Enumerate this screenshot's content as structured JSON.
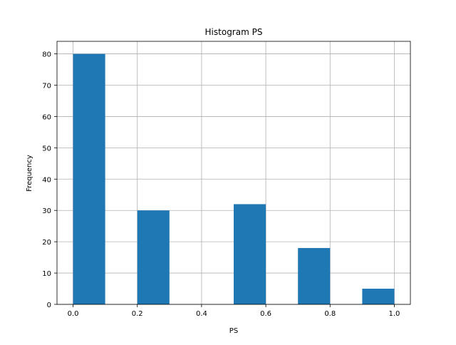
{
  "chart_data": {
    "type": "bar",
    "title": "Histogram PS",
    "xlabel": "PS",
    "ylabel": "Frequency",
    "bin_edges": [
      0.0,
      0.1,
      0.2,
      0.3,
      0.4,
      0.5,
      0.6,
      0.7,
      0.8,
      0.9,
      1.0
    ],
    "values": [
      80,
      0,
      30,
      0,
      0,
      32,
      0,
      18,
      0,
      5
    ],
    "xlim": [
      -0.05,
      1.05
    ],
    "ylim": [
      0,
      84
    ],
    "xticks": [
      0.0,
      0.2,
      0.4,
      0.6,
      0.8,
      1.0
    ],
    "xtick_labels": [
      "0.0",
      "0.2",
      "0.4",
      "0.6",
      "0.8",
      "1.0"
    ],
    "yticks": [
      0,
      10,
      20,
      30,
      40,
      50,
      60,
      70,
      80
    ],
    "ytick_labels": [
      "0",
      "10",
      "20",
      "30",
      "40",
      "50",
      "60",
      "70",
      "80"
    ],
    "grid": true,
    "bar_color": "#1f77b4",
    "grid_color": "#b0b0b0"
  }
}
